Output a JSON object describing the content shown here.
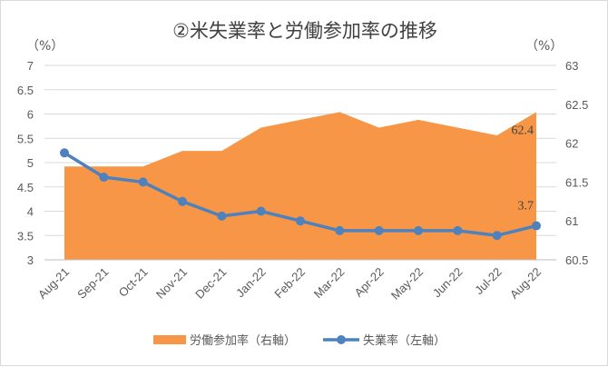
{
  "chart_data": {
    "type": "area+line",
    "title": "②米失業率と労働参加率の推移",
    "left_unit": "（%）",
    "right_unit": "（%）",
    "categories": [
      "Aug-21",
      "Sep-21",
      "Oct-21",
      "Nov-21",
      "Dec-21",
      "Jan-22",
      "Feb-22",
      "Mar-22",
      "Apr-22",
      "May-22",
      "Jun-22",
      "Jul-22",
      "Aug-22"
    ],
    "series": [
      {
        "name": "労働参加率（右軸）",
        "type": "area",
        "axis": "right",
        "color": "#F79646",
        "values": [
          61.7,
          61.7,
          61.7,
          61.9,
          61.9,
          62.2,
          62.3,
          62.4,
          62.2,
          62.3,
          62.2,
          62.1,
          62.4
        ],
        "last_label": "62.4"
      },
      {
        "name": "失業率（左軸）",
        "type": "line",
        "axis": "left",
        "color": "#4F81BD",
        "values": [
          5.2,
          4.7,
          4.6,
          4.2,
          3.9,
          4.0,
          3.8,
          3.6,
          3.6,
          3.6,
          3.6,
          3.5,
          3.7
        ],
        "last_label": "3.7"
      }
    ],
    "left_ylim": [
      3,
      7
    ],
    "left_ticks": [
      "3",
      "3.5",
      "4",
      "4.5",
      "5",
      "5.5",
      "6",
      "6.5",
      "7"
    ],
    "right_ylim": [
      60.5,
      63
    ],
    "right_ticks": [
      "60.5",
      "61",
      "61.5",
      "62",
      "62.5",
      "63"
    ],
    "grid": true,
    "legend": "bottom"
  }
}
